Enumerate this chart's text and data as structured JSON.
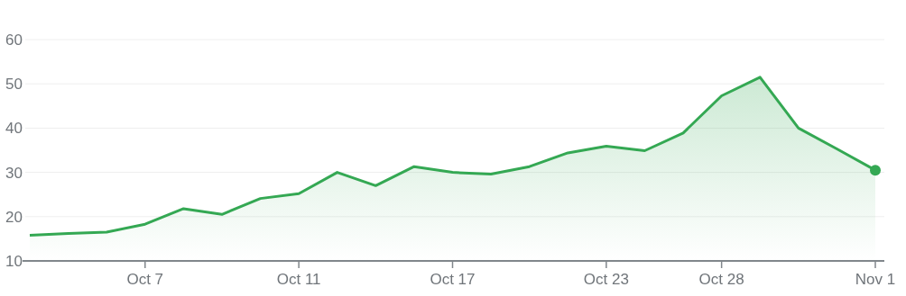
{
  "chart_data": {
    "type": "area",
    "categories": [
      null,
      null,
      null,
      "Oct 7",
      null,
      null,
      null,
      "Oct 11",
      null,
      null,
      null,
      "Oct 17",
      null,
      null,
      null,
      "Oct 23",
      null,
      null,
      "Oct 28",
      null,
      null,
      null,
      "Nov 1"
    ],
    "series": [
      {
        "color": "#34a853",
        "values": [
          15.8,
          16.2,
          16.5,
          18.3,
          21.8,
          20.5,
          24.1,
          25.2,
          30,
          27,
          31.3,
          30,
          29.6,
          31.3,
          34.4,
          35.9,
          34.9,
          38.9,
          47.3,
          51.5,
          40,
          35.3,
          30.5
        ]
      }
    ],
    "ylim": [
      10,
      60
    ],
    "yticks": [
      10,
      20,
      30,
      40,
      50,
      60
    ],
    "grid": "y"
  }
}
